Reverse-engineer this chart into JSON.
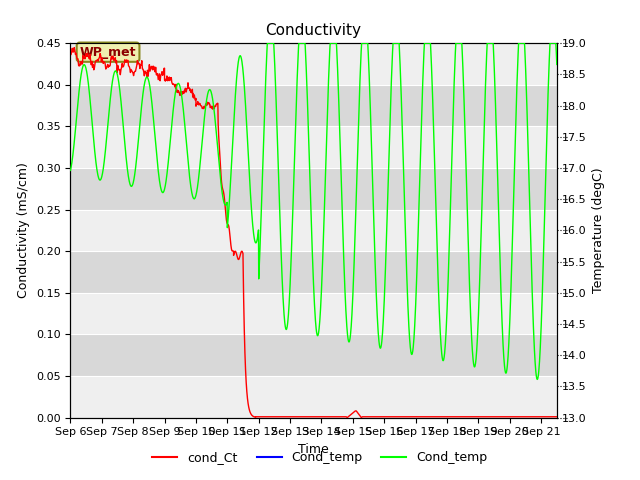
{
  "title": "Conductivity",
  "xlabel": "Time",
  "ylabel_left": "Conductivity (mS/cm)",
  "ylabel_right": "Temperature (degC)",
  "ylim_left": [
    0.0,
    0.45
  ],
  "ylim_right": [
    13.0,
    19.0
  ],
  "x_tick_labels": [
    "Sep 6",
    "Sep 7",
    "Sep 8",
    "Sep 9",
    "Sep 10",
    "Sep 11",
    "Sep 12",
    "Sep 13",
    "Sep 14",
    "Sep 15",
    "Sep 16",
    "Sep 17",
    "Sep 18",
    "Sep 19",
    "Sep 20",
    "Sep 21"
  ],
  "annotation_text": "WP_met",
  "legend_entries": [
    "cond_Ct",
    "Cond_temp",
    "Cond_temp"
  ],
  "legend_colors": [
    "red",
    "blue",
    "lime"
  ],
  "bg_stripe_dark": "#d8d8d8",
  "bg_stripe_light": "#e8e8e8",
  "title_fontsize": 11,
  "label_fontsize": 9,
  "tick_fontsize": 8
}
